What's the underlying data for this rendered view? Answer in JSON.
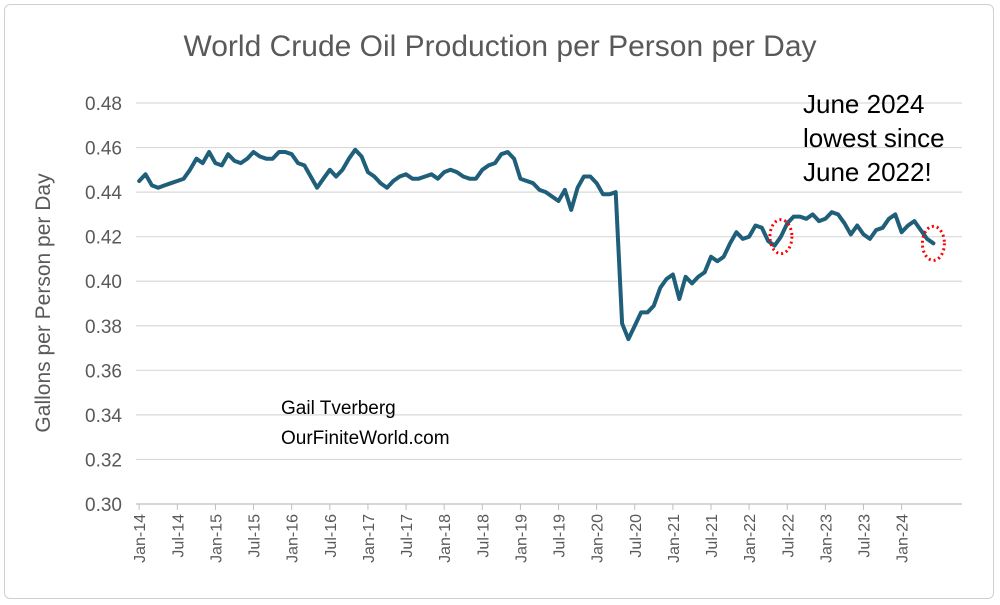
{
  "chart_data": {
    "type": "line",
    "title": "World Crude Oil Production per Person per Day",
    "ylabel": "Gallons per Person per Day",
    "xlabel": "",
    "ylim": [
      0.3,
      0.48
    ],
    "yticks": [
      "0.30",
      "0.32",
      "0.34",
      "0.36",
      "0.38",
      "0.40",
      "0.42",
      "0.44",
      "0.46",
      "0.48"
    ],
    "xticks": [
      "Jan-14",
      "Jul-14",
      "Jan-15",
      "Jul-15",
      "Jan-16",
      "Jul-16",
      "Jan-17",
      "Jul-17",
      "Jan-18",
      "Jul-18",
      "Jan-19",
      "Jul-19",
      "Jan-20",
      "Jul-20",
      "Jan-21",
      "Jul-21",
      "Jan-22",
      "Jul-22",
      "Jan-23",
      "Jul-23",
      "Jan-24"
    ],
    "grid": true,
    "series_color": "#1f5f7a",
    "highlight_color": "#ff0000",
    "series": [
      {
        "x_start": "Jan-14",
        "frequency": "monthly",
        "values": [
          0.445,
          0.448,
          0.443,
          0.442,
          0.443,
          0.444,
          0.445,
          0.446,
          0.45,
          0.455,
          0.453,
          0.458,
          0.453,
          0.452,
          0.457,
          0.454,
          0.453,
          0.455,
          0.458,
          0.456,
          0.455,
          0.455,
          0.458,
          0.458,
          0.457,
          0.453,
          0.452,
          0.447,
          0.442,
          0.446,
          0.45,
          0.447,
          0.45,
          0.455,
          0.459,
          0.456,
          0.449,
          0.447,
          0.444,
          0.442,
          0.445,
          0.447,
          0.448,
          0.446,
          0.446,
          0.447,
          0.448,
          0.446,
          0.449,
          0.45,
          0.449,
          0.447,
          0.446,
          0.446,
          0.45,
          0.452,
          0.453,
          0.457,
          0.458,
          0.455,
          0.446,
          0.445,
          0.444,
          0.441,
          0.44,
          0.438,
          0.436,
          0.441,
          0.432,
          0.442,
          0.447,
          0.447,
          0.444,
          0.439,
          0.439,
          0.44,
          0.381,
          0.374,
          0.38,
          0.386,
          0.386,
          0.389,
          0.397,
          0.401,
          0.403,
          0.392,
          0.402,
          0.399,
          0.402,
          0.404,
          0.411,
          0.409,
          0.411,
          0.417,
          0.422,
          0.419,
          0.42,
          0.425,
          0.424,
          0.418,
          0.416,
          0.42,
          0.426,
          0.429,
          0.429,
          0.428,
          0.43,
          0.427,
          0.428,
          0.431,
          0.43,
          0.426,
          0.421,
          0.425,
          0.421,
          0.419,
          0.423,
          0.424,
          0.428,
          0.43,
          0.422,
          0.425,
          0.427,
          0.423,
          0.419,
          0.417
        ]
      }
    ],
    "annotations": {
      "note_lines": [
        "June 2024",
        "lowest since",
        "June 2022!"
      ],
      "credit_lines": [
        "Gail Tverberg",
        "OurFiniteWorld.com"
      ],
      "highlight_points": [
        "Jun-22",
        "Jun-24"
      ]
    }
  }
}
